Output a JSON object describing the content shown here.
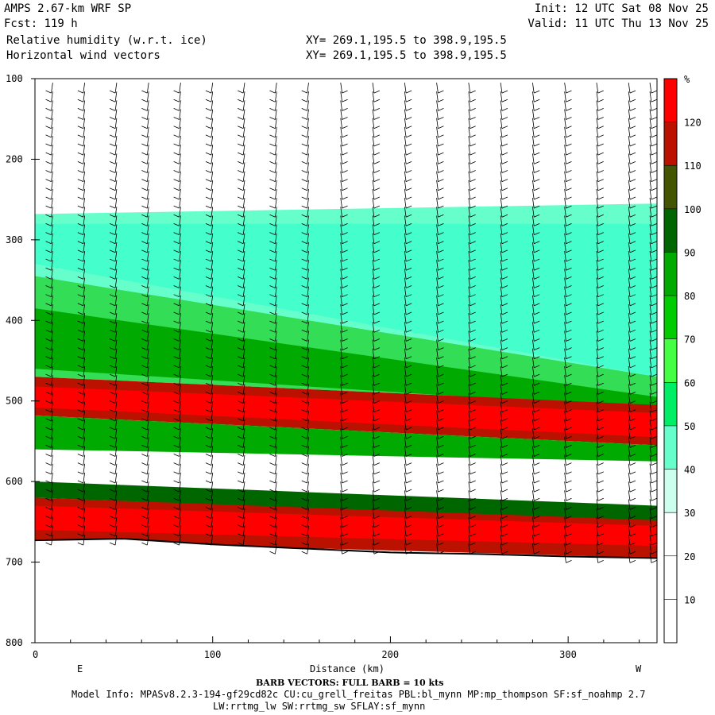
{
  "header": {
    "model": "AMPS 2.67-km WRF SP",
    "fcst": "Fcst: 119 h",
    "field1": "Relative humidity (w.r.t. ice)",
    "field2": "Horizontal wind vectors",
    "xy1": "XY= 269.1,195.5 to 398.9,195.5",
    "xy2": "XY= 269.1,195.5 to 398.9,195.5",
    "init": "Init: 12 UTC Sat 08 Nov 25",
    "valid": "Valid: 11 UTC Thu 13 Nov 25"
  },
  "footer": {
    "barb_note": "BARB VECTORS: FULL BARB = 10 kts",
    "model_info": "Model Info: MPASv8.2.3-194-gf29cd82c CU:cu_grell_freitas PBL:bl_mynn MP:mp_thompson SF:sf_noahmp 2.7",
    "model_info2": "LW:rrtmg_lw SW:rrtmg_sw SFLAY:sf_mynn"
  },
  "chart_data": {
    "type": "heatmap",
    "xlabel": "Distance (km)",
    "ylabel": "",
    "xlim": [
      0,
      350
    ],
    "ylim": [
      800,
      100
    ],
    "x_ticks": [
      0,
      100,
      200,
      300
    ],
    "y_ticks": [
      100,
      200,
      300,
      400,
      500,
      600,
      700,
      800
    ],
    "x_end_labels": {
      "left": "E",
      "right": "W"
    },
    "colorbar": {
      "unit": "%",
      "levels": [
        10,
        20,
        30,
        40,
        50,
        60,
        70,
        80,
        90,
        100,
        110,
        120
      ],
      "colors": [
        "#ffffff",
        "#ffffff",
        "#ffffff",
        "#ccffee",
        "#66ffcc",
        "#00ee66",
        "#44ff44",
        "#00cc00",
        "#00aa00",
        "#006600",
        "#445500",
        "#bb1100",
        "#ff0000"
      ]
    },
    "terrain_pressure": [
      {
        "x": 0,
        "p": 673
      },
      {
        "x": 50,
        "p": 671
      },
      {
        "x": 100,
        "p": 678
      },
      {
        "x": 150,
        "p": 683
      },
      {
        "x": 200,
        "p": 688
      },
      {
        "x": 250,
        "p": 690
      },
      {
        "x": 300,
        "p": 693
      },
      {
        "x": 350,
        "p": 695
      }
    ],
    "bands": [
      {
        "name": "rh_40_50",
        "color": "#66ffcc",
        "left_top": 268,
        "left_bot": 350,
        "right_top": 255,
        "right_bot": 495
      },
      {
        "name": "rh_50_60",
        "color": "#44ffcc",
        "left_top": 280,
        "left_bot": 330,
        "right_top": 280,
        "right_bot": 470
      },
      {
        "name": "rh_60_70",
        "color": "#33dd55",
        "left_top": 345,
        "left_bot": 470,
        "right_top": 470,
        "right_bot": 505
      },
      {
        "name": "rh_90_100",
        "color": "#00aa00",
        "left_top": 385,
        "left_bot": 460,
        "right_top": 495,
        "right_bot": 510
      },
      {
        "name": "rh_110_upper",
        "color": "#bb1100",
        "left_top": 470,
        "left_bot": 518,
        "right_top": 505,
        "right_bot": 555
      },
      {
        "name": "rh_120_upper",
        "color": "#ff0000",
        "left_top": 482,
        "left_bot": 508,
        "right_top": 515,
        "right_bot": 545
      },
      {
        "name": "rh_90_mid",
        "color": "#00aa00",
        "left_top": 518,
        "left_bot": 560,
        "right_top": 555,
        "right_bot": 575
      },
      {
        "name": "rh_100_lower",
        "color": "#006600",
        "left_top": 600,
        "left_bot": 620,
        "right_top": 630,
        "right_bot": 650
      },
      {
        "name": "rh_110_lower",
        "color": "#bb1100",
        "left_top": 620,
        "left_bot": 673,
        "right_top": 648,
        "right_bot": 695
      },
      {
        "name": "rh_120_lower",
        "color": "#ff0000",
        "left_top": 630,
        "left_bot": 660,
        "right_top": 655,
        "right_bot": 680
      }
    ],
    "barb_columns_x": [
      10,
      28,
      46,
      64,
      82,
      100,
      118,
      136,
      154,
      172,
      190,
      208,
      226,
      244,
      262,
      280,
      298,
      316,
      334,
      346
    ]
  }
}
